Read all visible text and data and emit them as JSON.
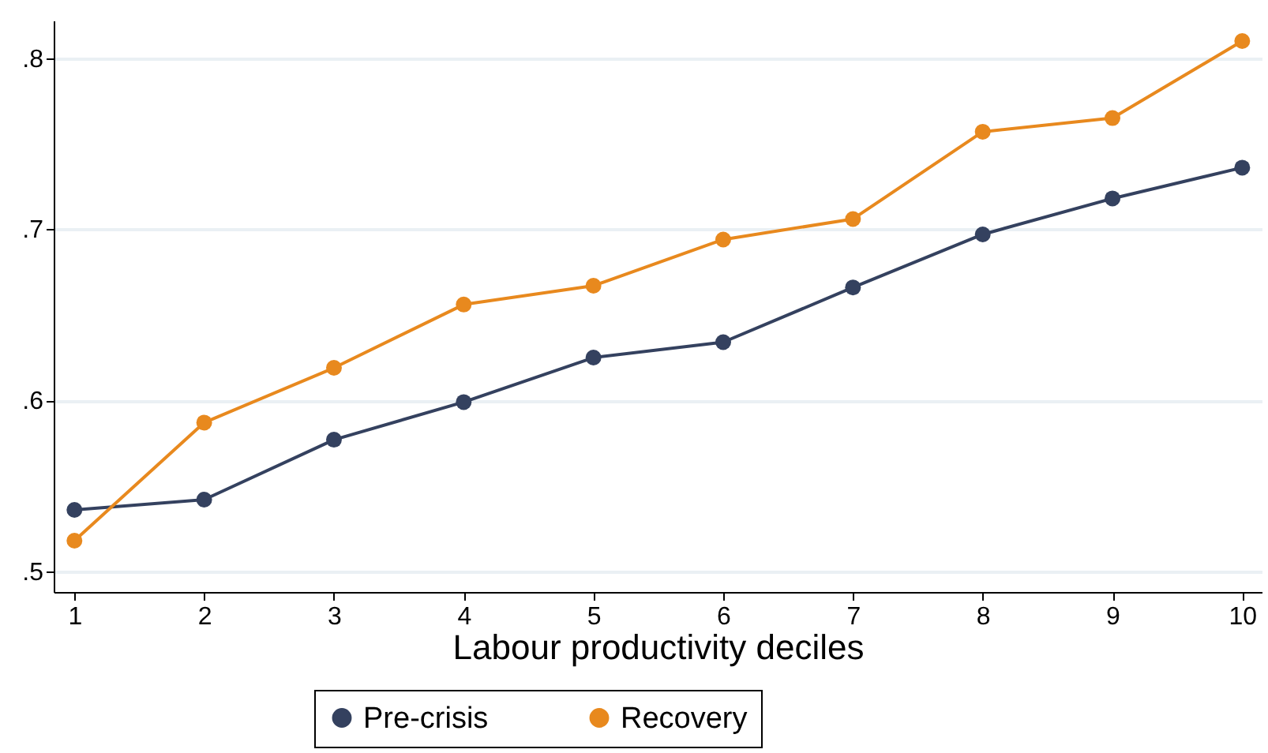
{
  "chart_data": {
    "type": "line",
    "xlabel": "Labour productivity deciles",
    "x": [
      1,
      2,
      3,
      4,
      5,
      6,
      7,
      8,
      9,
      10
    ],
    "series": [
      {
        "name": "Pre-crisis",
        "color": "#34415f",
        "values": [
          0.536,
          0.542,
          0.577,
          0.599,
          0.625,
          0.634,
          0.666,
          0.697,
          0.718,
          0.736
        ]
      },
      {
        "name": "Recovery",
        "color": "#e8891e",
        "values": [
          0.518,
          0.587,
          0.619,
          0.656,
          0.667,
          0.694,
          0.706,
          0.757,
          0.765,
          0.81
        ]
      }
    ],
    "xlim": [
      0.84,
      10.15
    ],
    "xticks": [
      1,
      2,
      3,
      4,
      5,
      6,
      7,
      8,
      9,
      10
    ],
    "ylim": [
      0.488,
      0.822
    ],
    "yticks": [
      {
        "value": 0.5,
        "label": ".5"
      },
      {
        "value": 0.6,
        "label": ".6"
      },
      {
        "value": 0.7,
        "label": ".7"
      },
      {
        "value": 0.8,
        "label": ".8"
      }
    ],
    "grid": "y",
    "legend": "bottom",
    "marker": "circle",
    "line_style": "solid"
  }
}
